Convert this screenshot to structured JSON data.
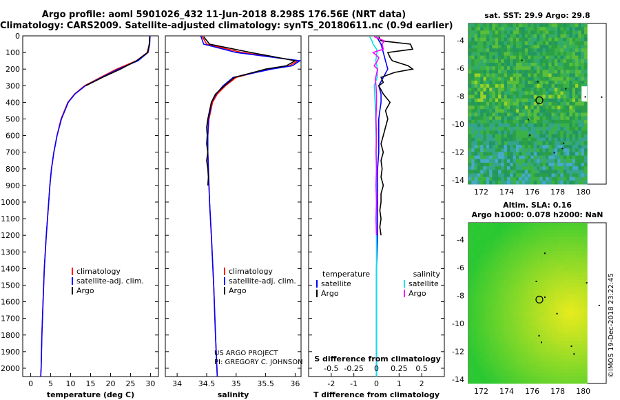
{
  "header": {
    "line1": "Argo profile: aoml 5901026_432 11-Jun-2018 8.298S 176.56E (NRT data)",
    "line2": "Climatology: CARS2009. Satellite-adjusted climatology: synTS_20180611.nc (0.9d earlier)"
  },
  "right_panels": {
    "sst_title": "sat. SST: 29.9 Argo: 29.8",
    "sla_title1": "Altim. SLA: 0.16",
    "sla_title2": "Argo h1000: 0.078 h2000: NaN",
    "stamp": "©IMOS 19-Dec-2018 23:22:45"
  },
  "chart_data": [
    {
      "type": "line",
      "name": "temperature",
      "xlabel": "temperature (deg C)",
      "ylabel": "depth",
      "xlim": [
        -2,
        32
      ],
      "ylim": [
        2050,
        0
      ],
      "xticks": [
        0,
        5,
        10,
        15,
        20,
        25,
        30
      ],
      "yticks": [
        0,
        100,
        200,
        300,
        400,
        500,
        600,
        700,
        800,
        900,
        1000,
        1100,
        1200,
        1300,
        1400,
        1500,
        1600,
        1700,
        1800,
        1900,
        2000
      ],
      "legend": [
        "climatology",
        "satellite-adj. clim.",
        "Argo"
      ],
      "series": [
        {
          "name": "climatology",
          "color": "#ff0000",
          "depth": [
            0,
            50,
            100,
            150,
            200,
            250,
            300,
            350,
            400,
            500,
            600,
            700,
            800,
            900,
            1000,
            1200,
            1400,
            1600,
            1800,
            2000,
            2050
          ],
          "values": [
            29.8,
            29.7,
            29.2,
            26.5,
            21.5,
            17.5,
            13.5,
            11.0,
            9.3,
            7.6,
            6.6,
            5.8,
            5.2,
            4.8,
            4.5,
            3.9,
            3.4,
            3.1,
            2.8,
            2.6,
            2.5
          ]
        },
        {
          "name": "satellite-adj. clim.",
          "color": "#0000ff",
          "depth": [
            0,
            50,
            100,
            150,
            200,
            250,
            300,
            350,
            400,
            500,
            600,
            700,
            800,
            900,
            1000,
            1200,
            1400,
            1600,
            1800,
            2000,
            2050
          ],
          "values": [
            29.9,
            29.8,
            29.4,
            26.9,
            22.0,
            17.8,
            13.7,
            11.1,
            9.4,
            7.7,
            6.6,
            5.8,
            5.2,
            4.8,
            4.5,
            3.9,
            3.4,
            3.1,
            2.8,
            2.6,
            2.5
          ]
        },
        {
          "name": "Argo",
          "color": "#000000",
          "depth": [
            5,
            50,
            100,
            150,
            200,
            250,
            300
          ],
          "values": [
            29.8,
            29.7,
            29.3,
            26.5,
            22.5,
            18.0,
            13.8
          ]
        }
      ]
    },
    {
      "type": "line",
      "name": "salinity",
      "xlabel": "salinity",
      "ylabel": "",
      "xlim": [
        33.8,
        36.1
      ],
      "ylim": [
        2050,
        0
      ],
      "xticks": [
        34,
        34.5,
        35,
        35.5,
        36
      ],
      "legend": [
        "climatology",
        "satellite-adj. clim.",
        "Argo"
      ],
      "series": [
        {
          "name": "climatology",
          "color": "#ff0000",
          "depth": [
            0,
            50,
            100,
            150,
            180,
            200,
            250,
            300,
            350,
            400,
            450,
            500,
            600,
            700,
            800,
            1000,
            1200,
            1500,
            1800,
            2050
          ],
          "values": [
            34.42,
            34.5,
            35.1,
            36.05,
            35.9,
            35.55,
            35.0,
            34.82,
            34.68,
            34.6,
            34.57,
            34.54,
            34.52,
            34.52,
            34.53,
            34.55,
            34.58,
            34.62,
            34.65,
            34.68
          ]
        },
        {
          "name": "satellite-adj. clim.",
          "color": "#0000ff",
          "depth": [
            0,
            50,
            100,
            150,
            180,
            200,
            250,
            300,
            350,
            400,
            450,
            500,
            600,
            700,
            800,
            1000,
            1200,
            1500,
            1800,
            2050
          ],
          "values": [
            34.4,
            34.45,
            35.0,
            36.08,
            35.95,
            35.6,
            34.95,
            34.78,
            34.66,
            34.58,
            34.56,
            34.53,
            34.52,
            34.52,
            34.53,
            34.55,
            34.58,
            34.62,
            34.65,
            34.68
          ]
        },
        {
          "name": "Argo",
          "color": "#000000",
          "depth": [
            5,
            50,
            100,
            150,
            180,
            200,
            250,
            300,
            350,
            400,
            450,
            500,
            550,
            600,
            650,
            700,
            750,
            800,
            850,
            900
          ],
          "values": [
            34.45,
            34.55,
            35.25,
            36.0,
            35.85,
            35.5,
            34.97,
            34.8,
            34.65,
            34.58,
            34.55,
            34.52,
            34.5,
            34.51,
            34.5,
            34.52,
            34.5,
            34.52,
            34.53,
            34.52
          ]
        }
      ],
      "annotation": [
        "US ARGO PROJECT",
        "PI: GREGORY C. JOHNSON"
      ]
    },
    {
      "type": "line",
      "name": "differences",
      "xlabel": "T difference from climatology",
      "xlabel_top": "S difference from climatology",
      "xlim": [
        -3,
        3
      ],
      "ylim": [
        2050,
        0
      ],
      "xticks": [
        -2,
        -1,
        0,
        1,
        2
      ],
      "sticks": [
        -0.5,
        -0.25,
        0,
        0.25,
        0.5
      ],
      "legend_left_title": "temperature",
      "legend_right_title": "salinity",
      "legend_left": [
        "satellite",
        "Argo"
      ],
      "legend_right": [
        "satellite",
        "Argo"
      ],
      "series": [
        {
          "name": "T satellite",
          "color": "#0000ff",
          "depth": [
            5,
            50,
            100,
            150,
            200,
            250,
            300,
            350,
            400,
            450,
            500,
            600,
            700,
            800,
            900,
            1000,
            1100,
            1200,
            1400,
            1600,
            1800,
            2050
          ],
          "values": [
            0.0,
            0.2,
            0.3,
            0.4,
            0.5,
            0.3,
            0.1,
            0.2,
            0.2,
            0.15,
            0.1,
            0.1,
            0.1,
            0.05,
            0.05,
            0.05,
            0.05,
            0.05,
            0.0,
            0.0,
            0.0,
            0.0
          ]
        },
        {
          "name": "T Argo",
          "color": "#000000",
          "depth": [
            5,
            30,
            50,
            80,
            100,
            130,
            150,
            180,
            200,
            220,
            250,
            280,
            300,
            350,
            400,
            450,
            500,
            550,
            600,
            650,
            700,
            750,
            800,
            850,
            900,
            950,
            1000,
            1050,
            1100,
            1150,
            1200
          ],
          "values": [
            0.1,
            0.2,
            1.5,
            1.6,
            0.5,
            0.6,
            0.7,
            1.4,
            1.6,
            0.8,
            0.2,
            0.3,
            0.1,
            0.3,
            0.6,
            0.4,
            0.5,
            0.4,
            0.3,
            0.2,
            0.3,
            0.2,
            0.25,
            0.2,
            0.3,
            0.2,
            0.2,
            0.15,
            0.2,
            0.15,
            0.2
          ]
        },
        {
          "name": "S satellite",
          "color": "#00e5e5",
          "depth": [
            5,
            30,
            50,
            80,
            100,
            150,
            200,
            250,
            300,
            350,
            400,
            500,
            600,
            700,
            800,
            900,
            1000,
            1200,
            1400,
            1600,
            1800,
            2050
          ],
          "values": [
            -0.3,
            -0.2,
            -0.15,
            0.0,
            0.02,
            -0.03,
            0.05,
            0.03,
            -0.1,
            -0.08,
            -0.06,
            -0.04,
            -0.02,
            0.0,
            0.0,
            0.0,
            0.0,
            0.0,
            0.0,
            0.0,
            0.0,
            0.0
          ]
        },
        {
          "name": "S Argo",
          "color": "#ff00ff",
          "depth": [
            5,
            30,
            50,
            80,
            100,
            130,
            150,
            180,
            200,
            230,
            260,
            300,
            350,
            400,
            500,
            600,
            700,
            800,
            900,
            1000,
            1100,
            1200
          ],
          "values": [
            -0.1,
            0.35,
            0.25,
            0.3,
            -0.15,
            0.1,
            0.05,
            -0.1,
            0.05,
            0.0,
            -0.05,
            -0.02,
            0.0,
            0.0,
            -0.02,
            0.0,
            -0.02,
            0.0,
            -0.02,
            0.0,
            -0.02,
            0.0
          ]
        }
      ]
    },
    {
      "type": "heatmap",
      "name": "sst_map",
      "title": "sat. SST: 29.9 Argo: 29.8",
      "xlim": [
        171,
        181.8
      ],
      "ylim": [
        -14.3,
        -2.8
      ],
      "xticks": [
        172,
        174,
        176,
        178,
        180
      ],
      "yticks": [
        -4,
        -6,
        -8,
        -10,
        -12,
        -14
      ],
      "argo_location": [
        176.56,
        -8.298
      ]
    },
    {
      "type": "heatmap",
      "name": "sla_map",
      "title": "Altim. SLA: 0.16",
      "xlim": [
        171,
        181.8
      ],
      "ylim": [
        -14.3,
        -2.8
      ],
      "xticks": [
        172,
        174,
        176,
        178,
        180
      ],
      "yticks": [
        -4,
        -6,
        -8,
        -10,
        -12,
        -14
      ],
      "argo_location": [
        176.56,
        -8.298
      ]
    }
  ]
}
